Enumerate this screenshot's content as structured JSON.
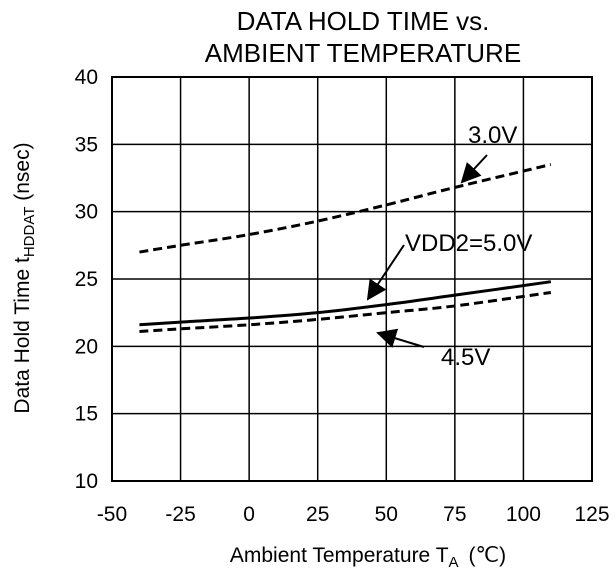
{
  "chart_data": {
    "type": "line",
    "title": [
      "DATA HOLD TIME vs.",
      "AMBIENT TEMPERATURE"
    ],
    "xlabel": {
      "main": "Ambient Temperature  T",
      "sub": "A",
      "unit": "(℃)"
    },
    "ylabel": {
      "main": "Data Hold Time  t",
      "sub": "HDDAT",
      "unit": " (nsec)"
    },
    "xlim": [
      -50,
      125
    ],
    "ylim": [
      10,
      40
    ],
    "x_ticks": [
      -50,
      -25,
      0,
      25,
      50,
      75,
      100,
      125
    ],
    "y_ticks": [
      10,
      15,
      20,
      25,
      30,
      35,
      40
    ],
    "x_tick_labels": [
      "-50",
      "-25",
      "0",
      "25",
      "50",
      "75",
      "100",
      "125"
    ],
    "y_tick_labels": [
      "10",
      "15",
      "20",
      "25",
      "30",
      "35",
      "40"
    ],
    "grid": true,
    "series": [
      {
        "name": "3.0V",
        "style": "dashed",
        "color": "#000000",
        "x": [
          -40,
          -25,
          0,
          25,
          50,
          75,
          110
        ],
        "y": [
          27.0,
          27.5,
          28.3,
          29.3,
          30.5,
          31.8,
          33.5
        ]
      },
      {
        "name": "VDD2=5.0V",
        "style": "solid",
        "color": "#000000",
        "x": [
          -40,
          -25,
          0,
          25,
          50,
          75,
          110
        ],
        "y": [
          21.6,
          21.8,
          22.1,
          22.5,
          23.1,
          23.8,
          24.8
        ]
      },
      {
        "name": "4.5V",
        "style": "dashed",
        "color": "#000000",
        "x": [
          -40,
          -25,
          0,
          25,
          50,
          75,
          110
        ],
        "y": [
          21.1,
          21.3,
          21.6,
          22.0,
          22.5,
          23.0,
          24.0
        ]
      }
    ],
    "annotations": [
      {
        "text": "3.0V",
        "series": "3.0V"
      },
      {
        "text": "VDD2=5.0V",
        "series": "VDD2=5.0V"
      },
      {
        "text": "4.5V",
        "series": "4.5V"
      }
    ]
  }
}
